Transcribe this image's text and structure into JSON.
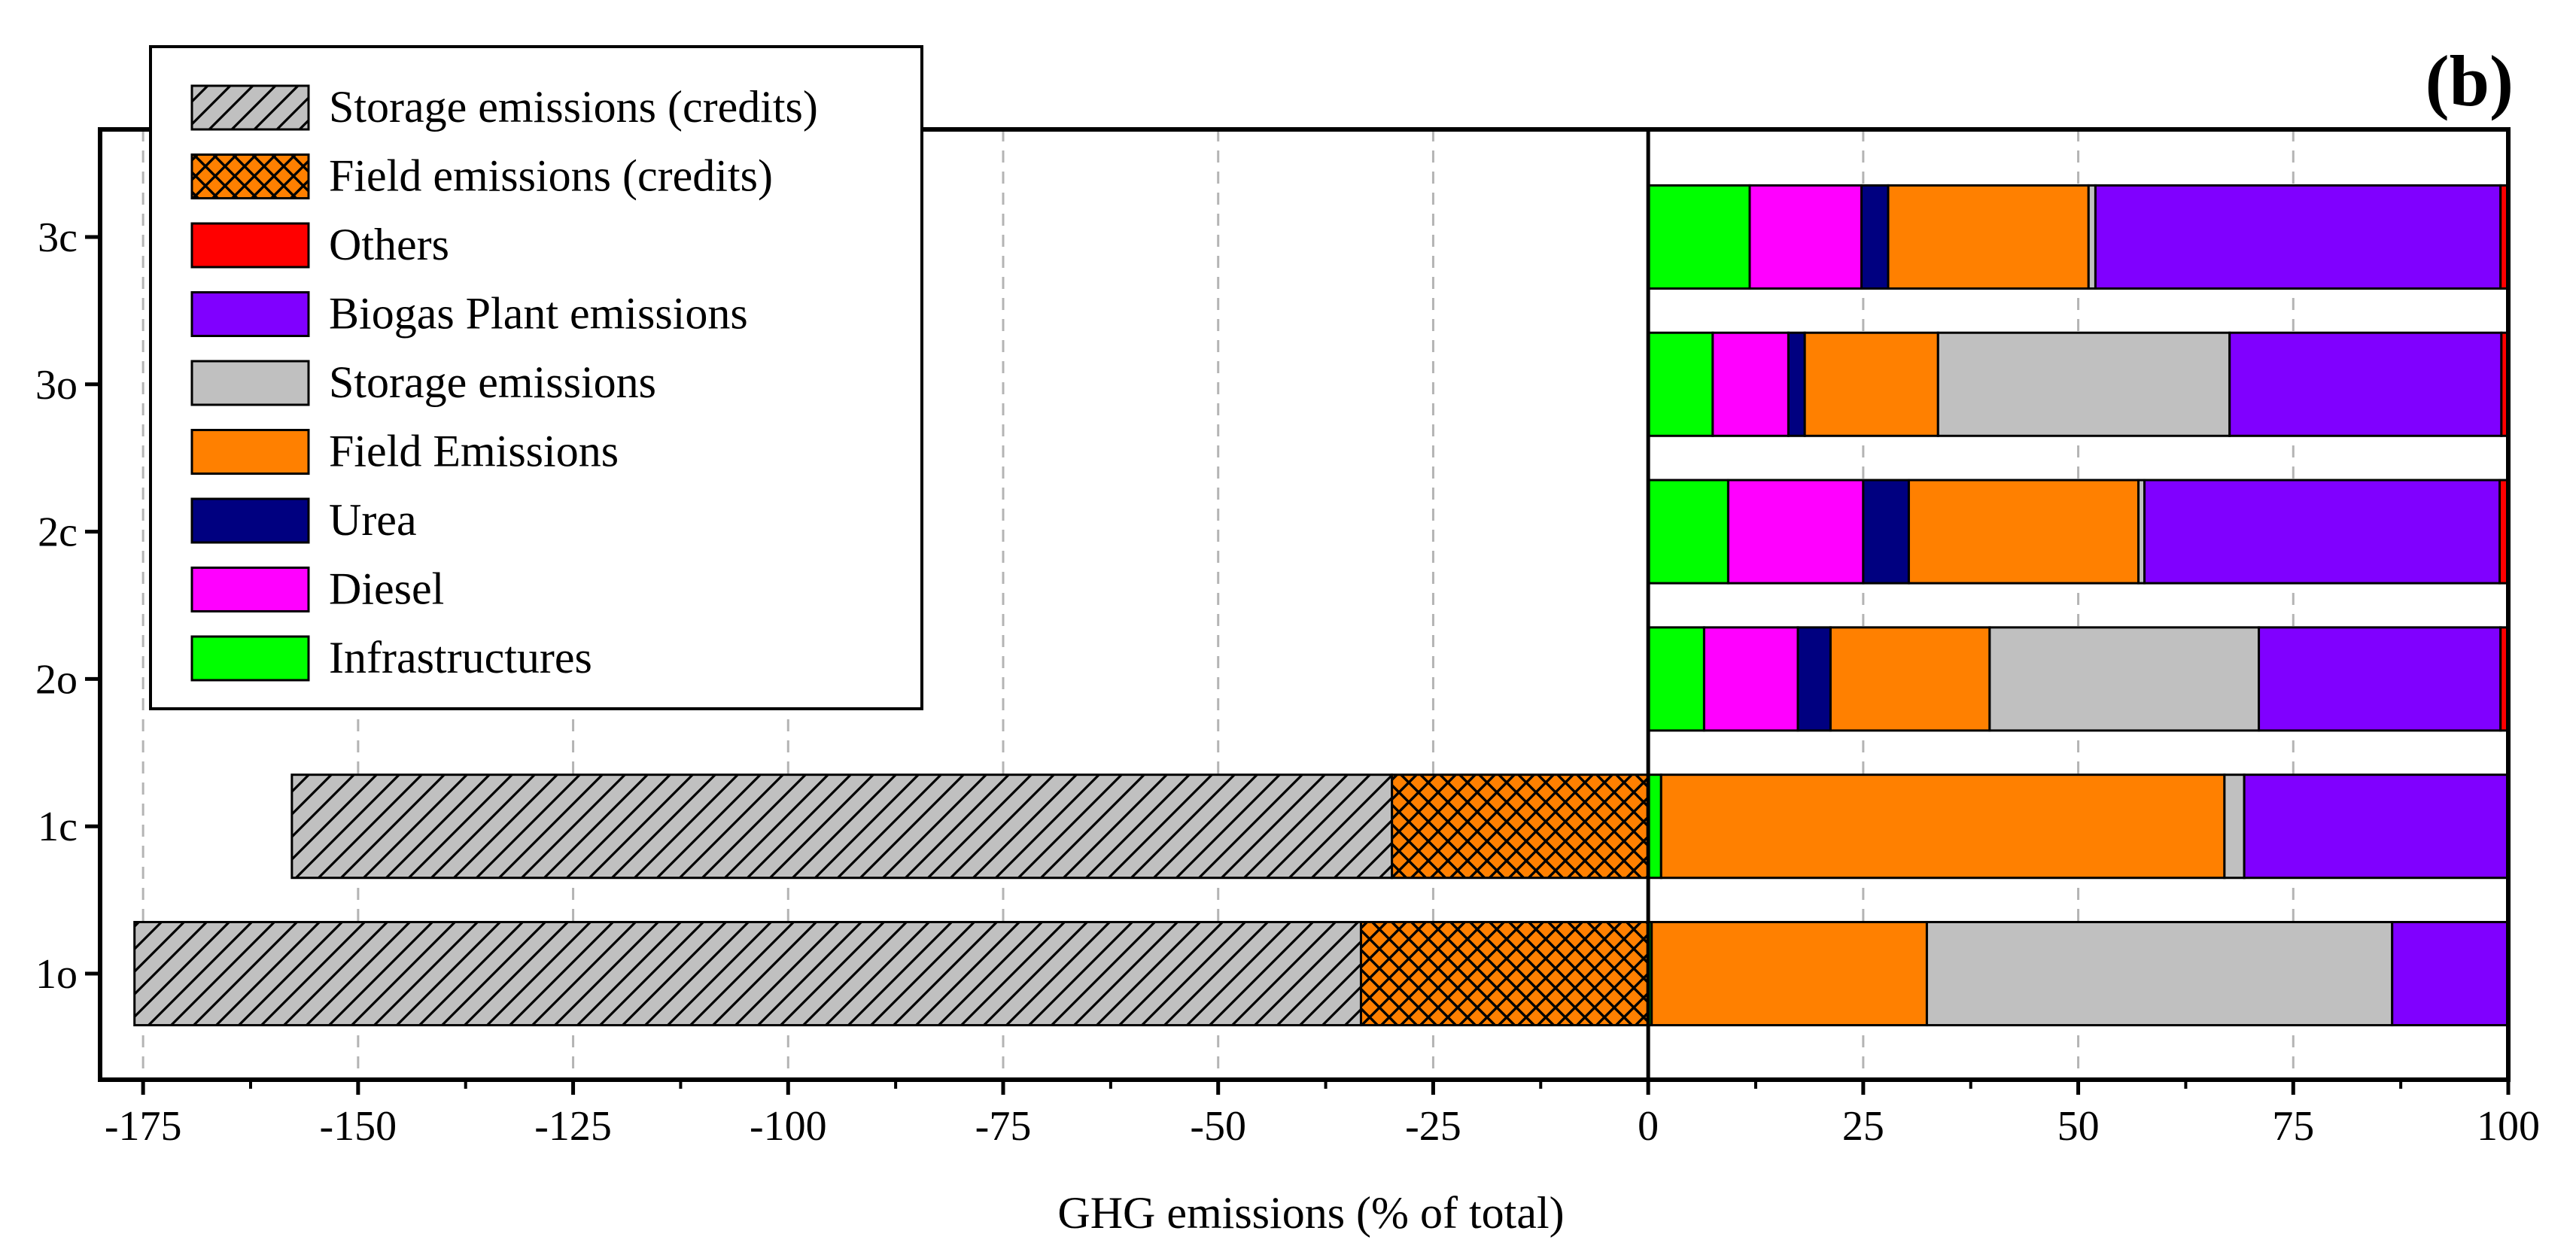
{
  "chart_data": {
    "type": "bar",
    "orientation": "horizontal",
    "stacked": true,
    "panel_label": "(b)",
    "xlabel": "GHG emissions (% of total)",
    "xlim": [
      -180,
      100
    ],
    "xticks": [
      -175,
      -150,
      -125,
      -100,
      -75,
      -50,
      -25,
      0,
      25,
      50,
      75,
      100
    ],
    "grid": "vertical dashed",
    "categories": [
      "1o",
      "1c",
      "2o",
      "2c",
      "3o",
      "3c"
    ],
    "series": [
      {
        "name": "Infrastructures",
        "color": "#00ff00",
        "pattern": "solid",
        "values": [
          0.4,
          1.5,
          6.5,
          9.3,
          7.5,
          11.8
        ]
      },
      {
        "name": "Diesel",
        "color": "#ff00ff",
        "pattern": "solid",
        "values": [
          0,
          0,
          10.9,
          15.7,
          8.8,
          13.0
        ]
      },
      {
        "name": "Urea",
        "color": "#000080",
        "pattern": "solid",
        "values": [
          0,
          0,
          3.8,
          5.3,
          1.9,
          3.1
        ]
      },
      {
        "name": "Field Emissions",
        "color": "#ff8000",
        "pattern": "solid",
        "values": [
          32.0,
          65.5,
          18.5,
          26.7,
          15.5,
          23.3
        ]
      },
      {
        "name": "Storage emissions",
        "color": "#c0c0c0",
        "pattern": "solid",
        "values": [
          54.1,
          2.3,
          31.3,
          0.7,
          33.9,
          0.8
        ]
      },
      {
        "name": "Biogas Plant emissions",
        "color": "#8000ff",
        "pattern": "solid",
        "values": [
          13.5,
          30.7,
          28.1,
          41.3,
          31.6,
          47.1
        ]
      },
      {
        "name": "Others",
        "color": "#ff0000",
        "pattern": "solid",
        "values": [
          0,
          0,
          0.9,
          1.0,
          0.8,
          0.9
        ]
      },
      {
        "name": "Field emissions (credits)",
        "color": "#ff8000",
        "pattern": "crosshatch",
        "values": [
          -33.4,
          -29.8,
          0,
          0,
          0,
          0
        ]
      },
      {
        "name": "Storage emissions (credits)",
        "color": "#c0c0c0",
        "pattern": "diagonal",
        "values": [
          -142.6,
          -127.9,
          0,
          0,
          0,
          0
        ]
      }
    ],
    "legend": {
      "placement": "top-left",
      "order": [
        "Storage emissions (credits)",
        "Field emissions (credits)",
        "Others",
        "Biogas Plant emissions",
        "Storage emissions",
        "Field Emissions",
        "Urea",
        "Diesel",
        "Infrastructures"
      ]
    }
  }
}
